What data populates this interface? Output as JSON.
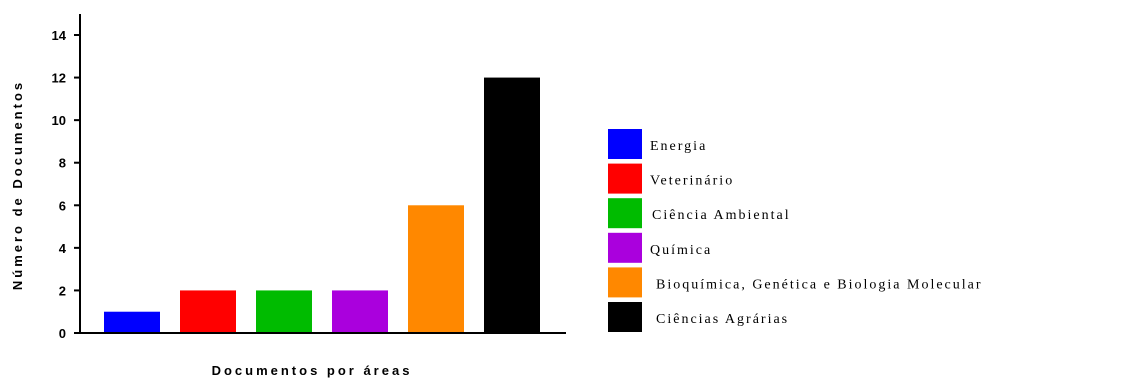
{
  "chart_data": {
    "type": "bar",
    "categories": [
      "Energia",
      "Veterinário",
      "Ciência Ambiental",
      "Química",
      "Bioquímica, Genética e Biologia Molecular",
      "Ciências Agrárias"
    ],
    "values": [
      1,
      2,
      2,
      2,
      6,
      12
    ],
    "colors": [
      "#0000ff",
      "#ff0000",
      "#00bb00",
      "#aa00dd",
      "#ff8800",
      "#000000"
    ],
    "xlabel": "Documentos por áreas",
    "ylabel": "Número de Documentos",
    "ylim": [
      0,
      15
    ],
    "yticks": [
      "0",
      "2",
      "4",
      "6",
      "8",
      "10",
      "12",
      "14"
    ],
    "legend_position": "right",
    "grid": false
  }
}
